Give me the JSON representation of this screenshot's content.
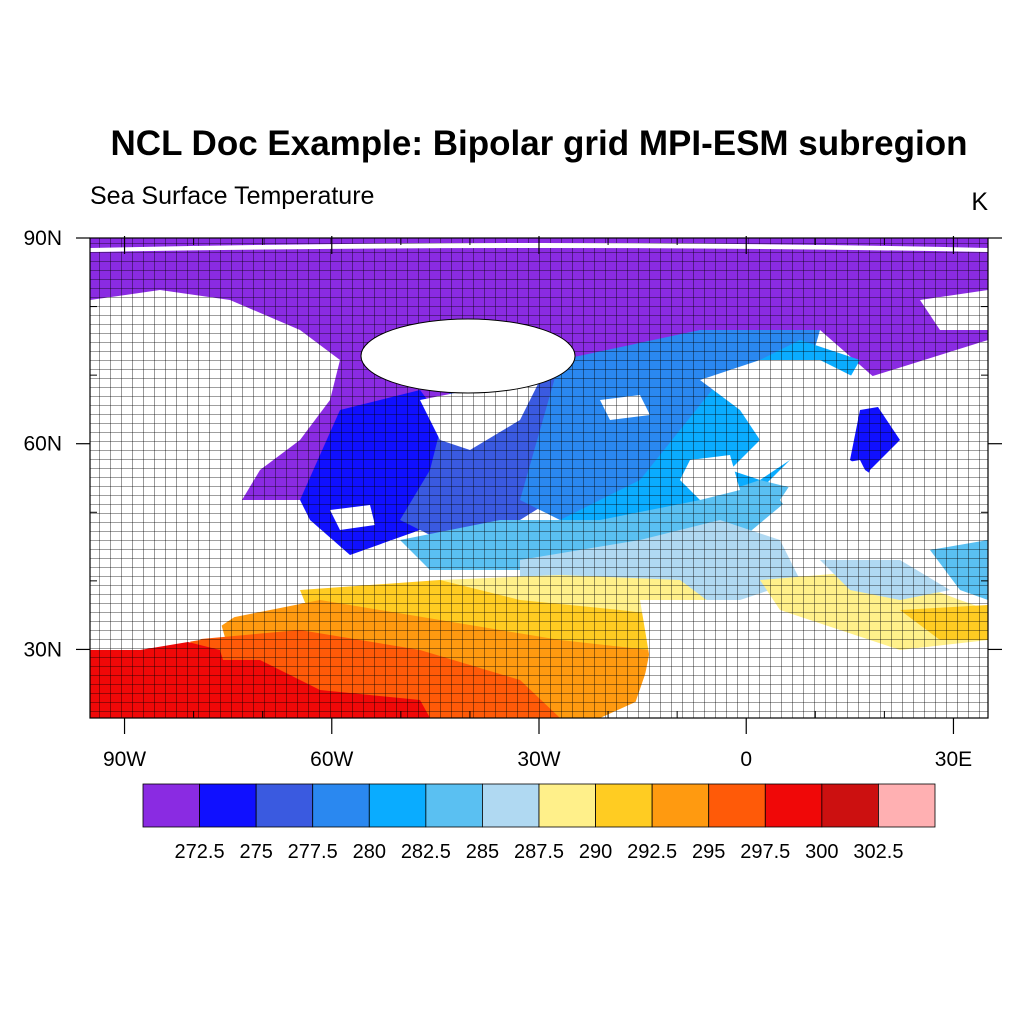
{
  "title": "NCL Doc Example: Bipolar grid MPI-ESM subregion",
  "left_subtitle": "Sea Surface Temperature",
  "right_subtitle": "K",
  "map": {
    "projection": "cylindrical-equidistant",
    "lon_range": [
      -95,
      35
    ],
    "lat_range": [
      20,
      90
    ],
    "lat_ticks": [
      {
        "value": 90,
        "label": "90N"
      },
      {
        "value": 60,
        "label": "60N"
      },
      {
        "value": 30,
        "label": "30N"
      }
    ],
    "lon_ticks": [
      {
        "value": -90,
        "label": "90W"
      },
      {
        "value": -60,
        "label": "60W"
      },
      {
        "value": -30,
        "label": "30W"
      },
      {
        "value": 0,
        "label": "0"
      },
      {
        "value": 30,
        "label": "30E"
      }
    ],
    "grid_lines": true,
    "land_color": "#ffffff"
  },
  "colorbar": {
    "colors": [
      "#8a2be2",
      "#1010ff",
      "#3a5ae0",
      "#2a88f0",
      "#0aacff",
      "#5ac0f2",
      "#b0d9f2",
      "#fff08a",
      "#ffcc22",
      "#ff9a10",
      "#ff5a08",
      "#f00808",
      "#cc1010",
      "#ffb0b2"
    ],
    "labels": [
      "272.5",
      "275",
      "277.5",
      "280",
      "282.5",
      "285",
      "287.5",
      "290",
      "292.5",
      "295",
      "297.5",
      "300",
      "302.5"
    ]
  }
}
